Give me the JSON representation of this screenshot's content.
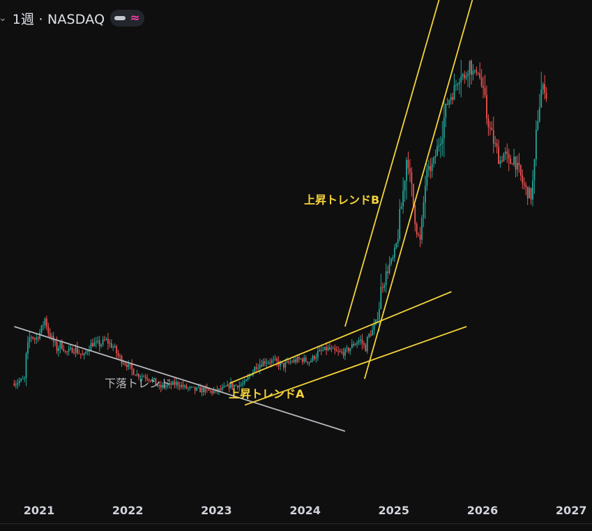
{
  "header": {
    "title": "1週 · NASDAQ",
    "chevron": "⌄",
    "visibility_icon": "eye-icon",
    "indicator_icon": "≈",
    "indicator_color": "#f23ea3"
  },
  "colors": {
    "background": "#0f0f0f",
    "up": "#26a69a",
    "down": "#ef5350",
    "trendline_yellow": "#f5d33a",
    "trendline_gray": "#b7b9bf"
  },
  "chart_data": {
    "type": "candlestick",
    "interval": "1週",
    "exchange": "NASDAQ",
    "x_ticks": [
      "2021",
      "2022",
      "2023",
      "2024",
      "2025",
      "2026",
      "2027"
    ],
    "x_range": [
      2020.7,
      2027.1
    ],
    "y_range": [
      0,
      100
    ],
    "grid": false,
    "legend": "none",
    "y_axis_visible": false,
    "price_path": [
      [
        2020.72,
        23
      ],
      [
        2020.78,
        23.5
      ],
      [
        2020.84,
        24
      ],
      [
        2020.86,
        30
      ],
      [
        2020.9,
        34
      ],
      [
        2020.96,
        33
      ],
      [
        2021.02,
        35
      ],
      [
        2021.07,
        38
      ],
      [
        2021.1,
        35
      ],
      [
        2021.15,
        33
      ],
      [
        2021.2,
        31
      ],
      [
        2021.25,
        32
      ],
      [
        2021.3,
        30
      ],
      [
        2021.4,
        31
      ],
      [
        2021.5,
        29
      ],
      [
        2021.55,
        31
      ],
      [
        2021.6,
        32
      ],
      [
        2021.7,
        32
      ],
      [
        2021.75,
        33
      ],
      [
        2021.8,
        32
      ],
      [
        2021.85,
        31
      ],
      [
        2021.9,
        29
      ],
      [
        2021.95,
        28
      ],
      [
        2022.0,
        27
      ],
      [
        2022.05,
        26
      ],
      [
        2022.1,
        25
      ],
      [
        2022.2,
        24.5
      ],
      [
        2022.3,
        23.5
      ],
      [
        2022.35,
        22
      ],
      [
        2022.45,
        22.5
      ],
      [
        2022.55,
        23
      ],
      [
        2022.65,
        22
      ],
      [
        2022.75,
        21.5
      ],
      [
        2022.85,
        21.5
      ],
      [
        2022.95,
        21
      ],
      [
        2023.05,
        21.5
      ],
      [
        2023.15,
        22.5
      ],
      [
        2023.25,
        22.5
      ],
      [
        2023.32,
        23
      ],
      [
        2023.38,
        25
      ],
      [
        2023.45,
        27
      ],
      [
        2023.55,
        28
      ],
      [
        2023.65,
        28
      ],
      [
        2023.75,
        27
      ],
      [
        2023.85,
        28
      ],
      [
        2023.95,
        28.5
      ],
      [
        2024.05,
        28
      ],
      [
        2024.15,
        30
      ],
      [
        2024.25,
        31
      ],
      [
        2024.35,
        30
      ],
      [
        2024.45,
        30
      ],
      [
        2024.55,
        32
      ],
      [
        2024.62,
        33
      ],
      [
        2024.68,
        31
      ],
      [
        2024.72,
        34
      ],
      [
        2024.76,
        35
      ],
      [
        2024.8,
        37
      ],
      [
        2024.83,
        40
      ],
      [
        2024.86,
        45
      ],
      [
        2024.9,
        47
      ],
      [
        2024.95,
        50
      ],
      [
        2025.0,
        52
      ],
      [
        2025.04,
        56
      ],
      [
        2025.07,
        61
      ],
      [
        2025.1,
        66
      ],
      [
        2025.13,
        72
      ],
      [
        2025.15,
        76
      ],
      [
        2025.18,
        70
      ],
      [
        2025.22,
        64
      ],
      [
        2025.26,
        58
      ],
      [
        2025.3,
        55
      ],
      [
        2025.33,
        63
      ],
      [
        2025.36,
        70
      ],
      [
        2025.4,
        72
      ],
      [
        2025.44,
        73
      ],
      [
        2025.48,
        76
      ],
      [
        2025.52,
        79
      ],
      [
        2025.56,
        83
      ],
      [
        2025.6,
        87
      ],
      [
        2025.64,
        89
      ],
      [
        2025.68,
        90
      ],
      [
        2025.72,
        93
      ],
      [
        2025.76,
        95
      ],
      [
        2025.8,
        92
      ],
      [
        2025.84,
        97
      ],
      [
        2025.88,
        95
      ],
      [
        2025.91,
        93
      ],
      [
        2025.94,
        96
      ],
      [
        2026.0,
        90
      ],
      [
        2026.05,
        84
      ],
      [
        2026.1,
        80
      ],
      [
        2026.15,
        77
      ],
      [
        2026.2,
        74
      ],
      [
        2026.25,
        76
      ],
      [
        2026.3,
        73
      ],
      [
        2026.35,
        75
      ],
      [
        2026.4,
        72
      ],
      [
        2026.45,
        69
      ],
      [
        2026.5,
        67
      ],
      [
        2026.55,
        66
      ],
      [
        2026.58,
        71
      ],
      [
        2026.62,
        84
      ],
      [
        2026.66,
        90
      ],
      [
        2026.7,
        91
      ],
      [
        2026.72,
        89
      ]
    ],
    "annotations": [
      {
        "text": "下落トレンド",
        "color": "gray"
      },
      {
        "text": "上昇トレンドA",
        "color": "yellow"
      },
      {
        "text": "上昇トレンドB",
        "color": "yellow"
      }
    ],
    "trendlines": [
      {
        "name": "下落トレンド",
        "color": "gray",
        "from": [
          2020.72,
          36
        ],
        "to": [
          2024.45,
          12
        ]
      },
      {
        "name": "上昇トレンドA upper",
        "color": "yellow",
        "from": [
          2023.15,
          23
        ],
        "to": [
          2025.65,
          44
        ]
      },
      {
        "name": "上昇トレンドA lower",
        "color": "yellow",
        "from": [
          2023.32,
          18
        ],
        "to": [
          2025.82,
          36
        ]
      },
      {
        "name": "上昇トレンドB upper",
        "color": "yellow",
        "from": [
          2024.45,
          36
        ],
        "to": [
          2025.85,
          135
        ]
      },
      {
        "name": "上昇トレンドB lower",
        "color": "yellow",
        "from": [
          2024.67,
          24
        ],
        "to": [
          2026.25,
          137
        ]
      }
    ]
  }
}
